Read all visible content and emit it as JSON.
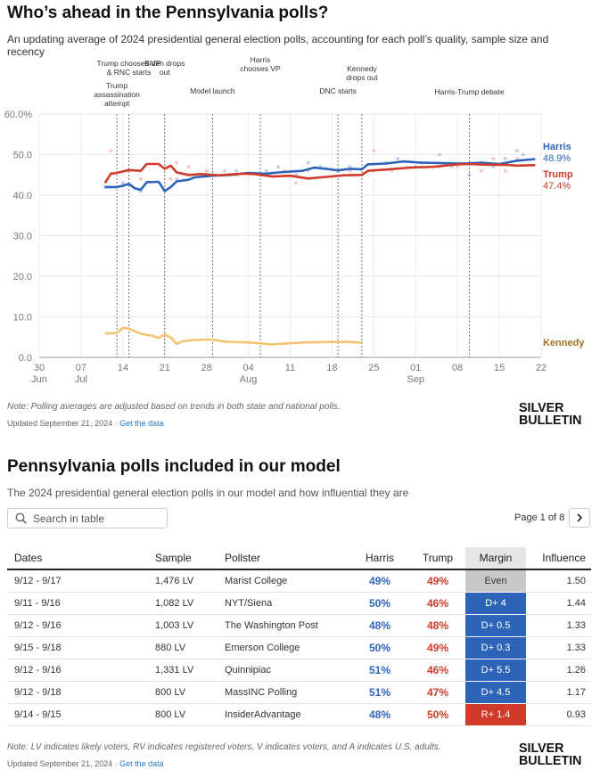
{
  "chart_title": "Who’s ahead in the Pennsylvania polls?",
  "chart_subtitle": "An updating average of 2024 presidential general election polls, accounting for each poll’s quality, sample size and recency",
  "chart_note": "Note: Polling averages are adjusted based on trends in both state and national polls.",
  "updated_text": "Updated September 21, 2024 · ",
  "get_data_link": "Get the data",
  "logo": {
    "line1": "SILVER",
    "line2": "BULLETIN"
  },
  "colors": {
    "harris": "#2e64b8",
    "trump": "#d03a2a",
    "kennedy": "#f5c470",
    "even": "#c8c8c8"
  },
  "chart_data": {
    "type": "line",
    "x_start": "2024-06-30",
    "x_end": "2024-09-22",
    "ylim": [
      0,
      60
    ],
    "yticks": [
      "0.0",
      "10.0",
      "20.0",
      "30.0",
      "40.0",
      "50.0",
      "60.0%"
    ],
    "xticks": [
      {
        "date": "2024-06-30",
        "label": "30",
        "sub": "Jun"
      },
      {
        "date": "2024-07-07",
        "label": "07",
        "sub": "Jul"
      },
      {
        "date": "2024-07-14",
        "label": "14",
        "sub": ""
      },
      {
        "date": "2024-07-21",
        "label": "21",
        "sub": ""
      },
      {
        "date": "2024-07-28",
        "label": "28",
        "sub": ""
      },
      {
        "date": "2024-08-04",
        "label": "04",
        "sub": "Aug"
      },
      {
        "date": "2024-08-11",
        "label": "11",
        "sub": ""
      },
      {
        "date": "2024-08-18",
        "label": "18",
        "sub": ""
      },
      {
        "date": "2024-08-25",
        "label": "25",
        "sub": ""
      },
      {
        "date": "2024-09-01",
        "label": "01",
        "sub": "Sep"
      },
      {
        "date": "2024-09-08",
        "label": "08",
        "sub": ""
      },
      {
        "date": "2024-09-15",
        "label": "15",
        "sub": ""
      },
      {
        "date": "2024-09-22",
        "label": "22",
        "sub": ""
      }
    ],
    "grid": true,
    "events": [
      {
        "date": "2024-07-13",
        "lines": [
          "Trump",
          "assassination",
          "attempt"
        ]
      },
      {
        "date": "2024-07-15",
        "lines": [
          "Trump chooses VP",
          "& RNC starts"
        ]
      },
      {
        "date": "2024-07-21",
        "lines": [
          "Biden drops",
          "out"
        ]
      },
      {
        "date": "2024-07-29",
        "lines": [
          "Model launch"
        ]
      },
      {
        "date": "2024-08-06",
        "lines": [
          "Harris",
          "chooses VP"
        ]
      },
      {
        "date": "2024-08-19",
        "lines": [
          "DNC starts"
        ]
      },
      {
        "date": "2024-08-23",
        "lines": [
          "Kennedy",
          "drops out"
        ]
      },
      {
        "date": "2024-09-10",
        "lines": [
          "Harris-Trump debate"
        ]
      }
    ],
    "series": [
      {
        "name": "Harris",
        "final_label": "48.9%",
        "points": [
          [
            "2024-07-11",
            42.0
          ],
          [
            "2024-07-13",
            42.0
          ],
          [
            "2024-07-14",
            42.3
          ],
          [
            "2024-07-15",
            42.8
          ],
          [
            "2024-07-16",
            41.7
          ],
          [
            "2024-07-17",
            41.3
          ],
          [
            "2024-07-18",
            43.2
          ],
          [
            "2024-07-20",
            43.3
          ],
          [
            "2024-07-21",
            41.0
          ],
          [
            "2024-07-22",
            42.0
          ],
          [
            "2024-07-23",
            43.4
          ],
          [
            "2024-07-25",
            43.8
          ],
          [
            "2024-07-26",
            44.4
          ],
          [
            "2024-07-29",
            44.8
          ],
          [
            "2024-08-01",
            45.0
          ],
          [
            "2024-08-04",
            45.5
          ],
          [
            "2024-08-07",
            45.3
          ],
          [
            "2024-08-09",
            45.6
          ],
          [
            "2024-08-11",
            45.8
          ],
          [
            "2024-08-13",
            46.0
          ],
          [
            "2024-08-15",
            46.8
          ],
          [
            "2024-08-17",
            46.5
          ],
          [
            "2024-08-19",
            46.1
          ],
          [
            "2024-08-21",
            46.5
          ],
          [
            "2024-08-23",
            46.4
          ],
          [
            "2024-08-24",
            47.6
          ],
          [
            "2024-08-27",
            47.8
          ],
          [
            "2024-08-30",
            48.3
          ],
          [
            "2024-09-02",
            48.0
          ],
          [
            "2024-09-06",
            47.9
          ],
          [
            "2024-09-09",
            47.8
          ],
          [
            "2024-09-12",
            48.0
          ],
          [
            "2024-09-15",
            47.7
          ],
          [
            "2024-09-18",
            48.5
          ],
          [
            "2024-09-21",
            48.9
          ]
        ]
      },
      {
        "name": "Trump",
        "final_label": "47.4%",
        "points": [
          [
            "2024-07-11",
            43.0
          ],
          [
            "2024-07-12",
            45.3
          ],
          [
            "2024-07-13",
            45.5
          ],
          [
            "2024-07-15",
            46.2
          ],
          [
            "2024-07-17",
            46.0
          ],
          [
            "2024-07-18",
            47.7
          ],
          [
            "2024-07-20",
            47.7
          ],
          [
            "2024-07-21",
            46.5
          ],
          [
            "2024-07-22",
            47.3
          ],
          [
            "2024-07-23",
            45.6
          ],
          [
            "2024-07-25",
            45.0
          ],
          [
            "2024-07-27",
            45.2
          ],
          [
            "2024-07-30",
            44.9
          ],
          [
            "2024-08-03",
            45.3
          ],
          [
            "2024-08-05",
            45.2
          ],
          [
            "2024-08-08",
            44.6
          ],
          [
            "2024-08-11",
            44.8
          ],
          [
            "2024-08-14",
            44.1
          ],
          [
            "2024-08-17",
            44.5
          ],
          [
            "2024-08-20",
            44.9
          ],
          [
            "2024-08-23",
            45.0
          ],
          [
            "2024-08-24",
            46.0
          ],
          [
            "2024-08-27",
            46.3
          ],
          [
            "2024-08-31",
            46.8
          ],
          [
            "2024-09-04",
            47.0
          ],
          [
            "2024-09-08",
            47.6
          ],
          [
            "2024-09-10",
            47.7
          ],
          [
            "2024-09-13",
            47.5
          ],
          [
            "2024-09-16",
            47.5
          ],
          [
            "2024-09-18",
            47.3
          ],
          [
            "2024-09-21",
            47.4
          ]
        ]
      },
      {
        "name": "Kennedy",
        "final_label": "",
        "points": [
          [
            "2024-07-11",
            5.9
          ],
          [
            "2024-07-13",
            6.0
          ],
          [
            "2024-07-14",
            7.3
          ],
          [
            "2024-07-15",
            7.1
          ],
          [
            "2024-07-17",
            5.8
          ],
          [
            "2024-07-19",
            5.3
          ],
          [
            "2024-07-20",
            4.8
          ],
          [
            "2024-07-21",
            5.6
          ],
          [
            "2024-07-22",
            4.9
          ],
          [
            "2024-07-23",
            3.3
          ],
          [
            "2024-07-24",
            4.0
          ],
          [
            "2024-07-26",
            4.3
          ],
          [
            "2024-07-29",
            4.4
          ],
          [
            "2024-07-31",
            3.9
          ],
          [
            "2024-08-04",
            3.7
          ],
          [
            "2024-08-08",
            3.2
          ],
          [
            "2024-08-11",
            3.5
          ],
          [
            "2024-08-14",
            3.7
          ],
          [
            "2024-08-18",
            3.8
          ],
          [
            "2024-08-21",
            3.8
          ],
          [
            "2024-08-23",
            3.6
          ]
        ]
      }
    ],
    "poll_dots": {
      "harris": [
        [
          "2024-07-11",
          42
        ],
        [
          "2024-07-14",
          43
        ],
        [
          "2024-07-17",
          41
        ],
        [
          "2024-07-23",
          44
        ],
        [
          "2024-07-25",
          45
        ],
        [
          "2024-07-28",
          45
        ],
        [
          "2024-07-31",
          46
        ],
        [
          "2024-08-02",
          46
        ],
        [
          "2024-08-07",
          46
        ],
        [
          "2024-08-09",
          47
        ],
        [
          "2024-08-12",
          45
        ],
        [
          "2024-08-14",
          48
        ],
        [
          "2024-08-16",
          47
        ],
        [
          "2024-08-19",
          46
        ],
        [
          "2024-08-21",
          47
        ],
        [
          "2024-08-27",
          48
        ],
        [
          "2024-08-29",
          49
        ],
        [
          "2024-09-02",
          48
        ],
        [
          "2024-09-05",
          50
        ],
        [
          "2024-09-07",
          47
        ],
        [
          "2024-09-10",
          45
        ],
        [
          "2024-09-12",
          48
        ],
        [
          "2024-09-14",
          47
        ],
        [
          "2024-09-16",
          49
        ],
        [
          "2024-09-18",
          51
        ],
        [
          "2024-09-19",
          50
        ]
      ],
      "trump": [
        [
          "2024-07-12",
          51
        ],
        [
          "2024-07-15",
          46
        ],
        [
          "2024-07-17",
          44
        ],
        [
          "2024-07-22",
          44
        ],
        [
          "2024-07-23",
          48
        ],
        [
          "2024-07-25",
          47
        ],
        [
          "2024-07-28",
          46
        ],
        [
          "2024-08-02",
          45
        ],
        [
          "2024-08-07",
          45
        ],
        [
          "2024-08-10",
          46
        ],
        [
          "2024-08-12",
          43
        ],
        [
          "2024-08-14",
          46
        ],
        [
          "2024-08-21",
          46
        ],
        [
          "2024-08-25",
          51
        ],
        [
          "2024-08-28",
          46
        ],
        [
          "2024-09-01",
          47
        ],
        [
          "2024-09-05",
          47
        ],
        [
          "2024-09-08",
          47
        ],
        [
          "2024-09-12",
          46
        ],
        [
          "2024-09-14",
          49
        ],
        [
          "2024-09-16",
          46
        ],
        [
          "2024-09-18",
          49
        ]
      ]
    }
  },
  "table_title": "Pennsylvania polls included in our model",
  "table_subtitle": "The 2024 presidential general election polls in our model and how influential they are",
  "search_placeholder": "Search in table",
  "pager_text": "Page 1 of 8",
  "columns": {
    "dates": "Dates",
    "sample": "Sample",
    "pollster": "Pollster",
    "harris": "Harris",
    "trump": "Trump",
    "margin": "Margin",
    "influence": "Influence"
  },
  "rows": [
    {
      "dates": "9/12 - 9/17",
      "sample": "1,476 LV",
      "pollster": "Marist College",
      "harris": "49%",
      "trump": "49%",
      "margin": "Even",
      "margin_color": "#c8c8c8",
      "influence": "1.50"
    },
    {
      "dates": "9/11 - 9/16",
      "sample": "1,082 LV",
      "pollster": "NYT/Siena",
      "harris": "50%",
      "trump": "46%",
      "margin": "D+ 4",
      "margin_color": "#2e64b8",
      "influence": "1.44"
    },
    {
      "dates": "9/12 - 9/16",
      "sample": "1,003 LV",
      "pollster": "The Washington Post",
      "harris": "48%",
      "trump": "48%",
      "margin": "D+ 0.5",
      "margin_color": "#2e64b8",
      "influence": "1.33"
    },
    {
      "dates": "9/15 - 9/18",
      "sample": "880 LV",
      "pollster": "Emerson College",
      "harris": "50%",
      "trump": "49%",
      "margin": "D+ 0.3",
      "margin_color": "#2e64b8",
      "influence": "1.33"
    },
    {
      "dates": "9/12 - 9/16",
      "sample": "1,331 LV",
      "pollster": "Quinnipiac",
      "harris": "51%",
      "trump": "46%",
      "margin": "D+ 5.5",
      "margin_color": "#2e64b8",
      "influence": "1.26"
    },
    {
      "dates": "9/12 - 9/18",
      "sample": "800 LV",
      "pollster": "MassINC Polling",
      "harris": "51%",
      "trump": "47%",
      "margin": "D+ 4.5",
      "margin_color": "#2e64b8",
      "influence": "1.17"
    },
    {
      "dates": "9/14 - 9/15",
      "sample": "800 LV",
      "pollster": "InsiderAdvantage",
      "harris": "48%",
      "trump": "50%",
      "margin": "R+ 1.4",
      "margin_color": "#d03a2a",
      "influence": "0.93"
    }
  ],
  "table_note": "Note: LV indicates likely voters, RV indicates registered voters, V indicates voters, and A indicates U.S. adults."
}
